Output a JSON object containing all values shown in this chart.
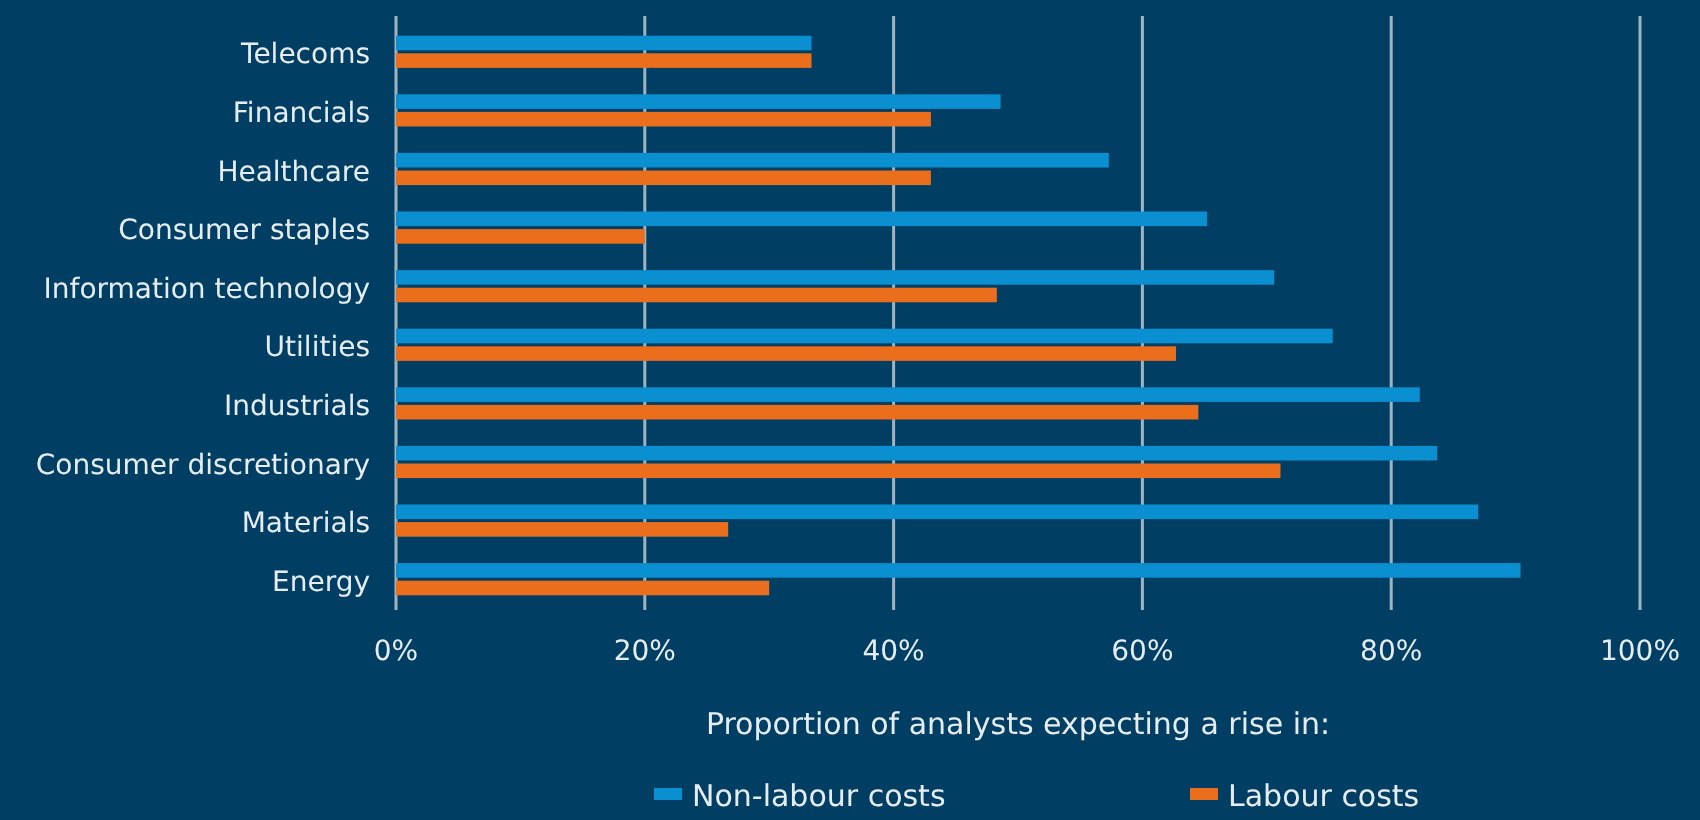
{
  "chart_data": {
    "type": "bar",
    "orientation": "horizontal",
    "categories": [
      "Telecoms",
      "Financials",
      "Healthcare",
      "Consumer staples",
      "Information technology",
      "Utilities",
      "Industrials",
      "Consumer discretionary",
      "Materials",
      "Energy"
    ],
    "series": [
      {
        "name": "Non-labour costs",
        "color": "#0a8fd0",
        "values": [
          33.4,
          48.6,
          57.3,
          65.2,
          70.6,
          75.3,
          82.3,
          83.7,
          87,
          90.4
        ]
      },
      {
        "name": "Labour costs",
        "color": "#ea6e1b",
        "values": [
          33.4,
          43,
          43,
          20,
          48.3,
          62.7,
          64.5,
          71.1,
          26.7,
          30
        ]
      }
    ],
    "xlim": [
      0,
      100
    ],
    "xticks": [
      {
        "value": 0,
        "label": "0%"
      },
      {
        "value": 20,
        "label": "20%"
      },
      {
        "value": 40,
        "label": "40%"
      },
      {
        "value": 60,
        "label": "60%"
      },
      {
        "value": 80,
        "label": "80%"
      },
      {
        "value": 100,
        "label": "100%"
      }
    ],
    "xlabel": "Proportion of analysts expecting a rise in:",
    "grid": "x",
    "legend": "bottom"
  }
}
